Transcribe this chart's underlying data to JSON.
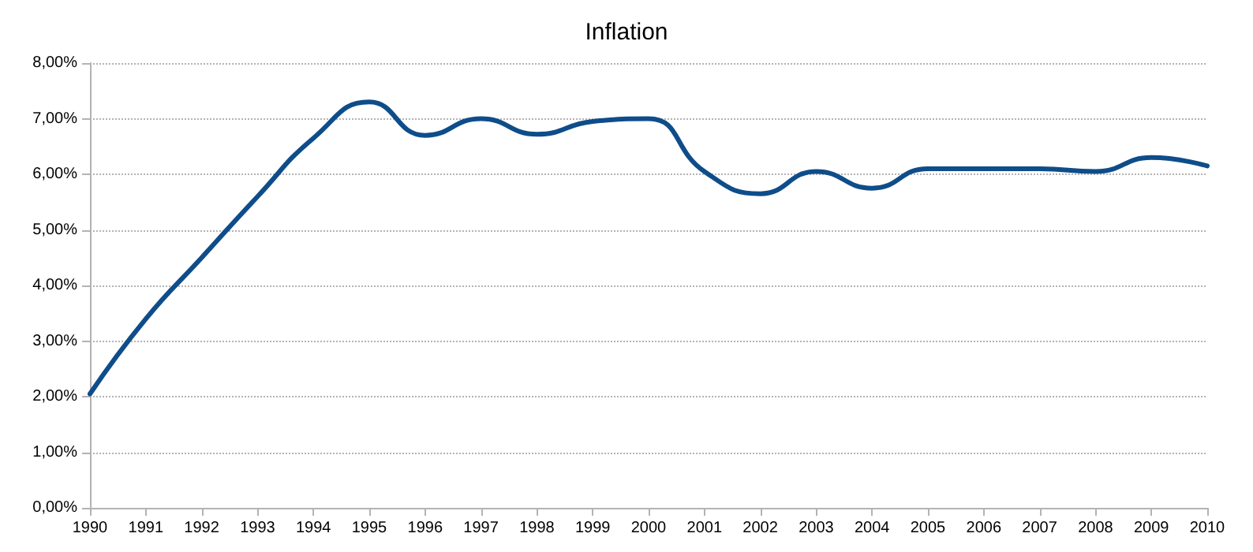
{
  "chart_data": {
    "type": "line",
    "title": "Inflation",
    "x": [
      1990,
      1991,
      1992,
      1993,
      1994,
      1995,
      1996,
      1997,
      1998,
      1999,
      2000,
      2001,
      2002,
      2003,
      2004,
      2005,
      2006,
      2007,
      2008,
      2009,
      2010
    ],
    "series": [
      {
        "color": "#0e4d8a",
        "values": [
          2.05,
          3.4,
          4.5,
          5.6,
          6.65,
          7.3,
          6.7,
          7.0,
          6.72,
          6.95,
          7.0,
          6.05,
          5.65,
          6.05,
          5.75,
          6.1,
          6.1,
          6.1,
          6.05,
          6.3,
          6.15
        ]
      }
    ],
    "xlim": [
      1990,
      2010
    ],
    "xticks": [
      1990,
      1991,
      1992,
      1993,
      1994,
      1995,
      1996,
      1997,
      1998,
      1999,
      2000,
      2001,
      2002,
      2003,
      2004,
      2005,
      2006,
      2007,
      2008,
      2009,
      2010
    ],
    "ylim": [
      0,
      8
    ],
    "yticks": [
      {
        "value": 0,
        "label": "0,00%"
      },
      {
        "value": 1,
        "label": "1,00%"
      },
      {
        "value": 2,
        "label": "2,00%"
      },
      {
        "value": 3,
        "label": "3,00%"
      },
      {
        "value": 4,
        "label": "4,00%"
      },
      {
        "value": 5,
        "label": "5,00%"
      },
      {
        "value": 6,
        "label": "6,00%"
      },
      {
        "value": 7,
        "label": "7,00%"
      },
      {
        "value": 8,
        "label": "8,00%"
      }
    ],
    "grid": "y",
    "marker": "none",
    "line_style": "solid"
  }
}
